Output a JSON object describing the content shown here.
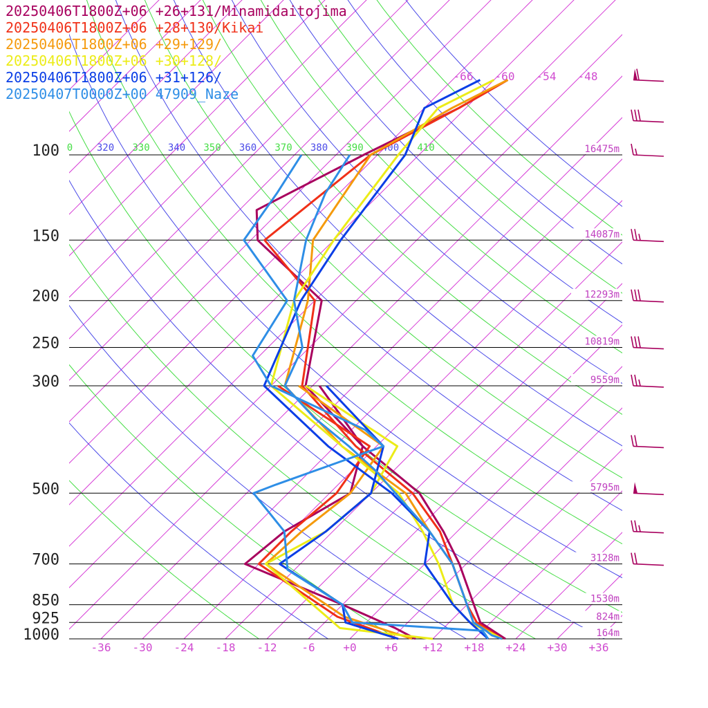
{
  "legend": [
    {
      "label": "20250406T1800Z+06 +26+131/Minamidaitojima",
      "color": "#a8005e"
    },
    {
      "label": "20250406T1800Z+06 +28+130/Kikai",
      "color": "#f03018"
    },
    {
      "label": "20250406T1800Z+06 +29+129/",
      "color": "#f59a0c"
    },
    {
      "label": "20250406T1800Z+06 +30+128/",
      "color": "#ecec18"
    },
    {
      "label": "20250406T1800Z+06 +31+126/",
      "color": "#0a3ee6"
    },
    {
      "label": "20250407T0000Z+00 47909_Naze",
      "color": "#2e8ee6"
    }
  ],
  "chart_data": {
    "type": "line",
    "subtype": "skew-T log-p sounding",
    "y_axis": {
      "kind": "pressure (log)",
      "ticks": [
        {
          "p": 100,
          "label": "100",
          "height": "16475m"
        },
        {
          "p": 150,
          "label": "150",
          "height": "14087m"
        },
        {
          "p": 200,
          "label": "200",
          "height": "12293m"
        },
        {
          "p": 250,
          "label": "250",
          "height": "10819m"
        },
        {
          "p": 300,
          "label": "300",
          "height": "9559m"
        },
        {
          "p": 500,
          "label": "500",
          "height": "5795m"
        },
        {
          "p": 700,
          "label": "700",
          "height": "3128m"
        },
        {
          "p": 850,
          "label": "850",
          "height": "1530m"
        },
        {
          "p": 925,
          "label": "925",
          "height": "824m"
        },
        {
          "p": 1000,
          "label": "1000",
          "height": "164m"
        }
      ]
    },
    "x_axis": {
      "kind": "temperature (°C, skewed)",
      "ticks": [
        "-36",
        "-30",
        "-24",
        "-18",
        "-12",
        "-6",
        "+0",
        "+6",
        "+12",
        "+18",
        "+24",
        "+30",
        "+36"
      ]
    },
    "isotherm_labels": [
      "-66",
      "-60",
      "-54",
      "-48"
    ],
    "theta_labels": [
      {
        "text": "0",
        "color": "#44dd44"
      },
      {
        "text": "320",
        "color": "#4a4ae8"
      },
      {
        "text": "330",
        "color": "#44dd44"
      },
      {
        "text": "340",
        "color": "#4a4ae8"
      },
      {
        "text": "350",
        "color": "#44dd44"
      },
      {
        "text": "360",
        "color": "#4a4ae8"
      },
      {
        "text": "370",
        "color": "#44dd44"
      },
      {
        "text": "380",
        "color": "#4a4ae8"
      },
      {
        "text": "390",
        "color": "#44dd44"
      },
      {
        "text": "400",
        "color": "#4a4ae8"
      },
      {
        "text": "410",
        "color": "#44dd44"
      }
    ],
    "series": [
      {
        "name": "20250406T1800Z+06 +26+131/Minamidaitojima",
        "color": "#a8005e",
        "temperature": [
          [
            1000,
            22.5
          ],
          [
            925,
            16.5
          ],
          [
            850,
            13
          ],
          [
            700,
            5
          ],
          [
            600,
            -2
          ],
          [
            500,
            -11
          ],
          [
            400,
            -26
          ],
          [
            300,
            -43
          ],
          [
            200,
            -53
          ],
          [
            150,
            -71
          ],
          [
            130,
            -75.5
          ],
          [
            100,
            -68
          ],
          [
            80,
            -61
          ],
          [
            70,
            -58
          ]
        ],
        "dewpoint": [
          [
            1000,
            9.5
          ],
          [
            950,
            5
          ],
          [
            850,
            -6
          ],
          [
            700,
            -26
          ],
          [
            600,
            -25
          ],
          [
            500,
            -21
          ],
          [
            400,
            -26
          ],
          [
            300,
            -41
          ]
        ]
      },
      {
        "name": "20250406T1800Z+06 +28+130/Kikai",
        "color": "#f03018",
        "temperature": [
          [
            1000,
            22
          ],
          [
            925,
            16
          ],
          [
            850,
            12
          ],
          [
            700,
            4
          ],
          [
            600,
            -2.5
          ],
          [
            500,
            -12
          ],
          [
            400,
            -27
          ],
          [
            300,
            -43.5
          ],
          [
            200,
            -54
          ],
          [
            150,
            -70
          ],
          [
            100,
            -67
          ],
          [
            80,
            -61
          ],
          [
            70,
            -58
          ]
        ],
        "dewpoint": [
          [
            1000,
            7
          ],
          [
            900,
            -5
          ],
          [
            700,
            -24
          ],
          [
            600,
            -24
          ],
          [
            500,
            -23
          ],
          [
            400,
            -25
          ],
          [
            300,
            -47
          ]
        ]
      },
      {
        "name": "20250406T1800Z+06 +29+129/",
        "color": "#f59a0c",
        "temperature": [
          [
            1000,
            22
          ],
          [
            925,
            15.5
          ],
          [
            850,
            12
          ],
          [
            700,
            4
          ],
          [
            600,
            -4
          ],
          [
            500,
            -13
          ],
          [
            400,
            -29
          ],
          [
            300,
            -46
          ],
          [
            200,
            -55
          ],
          [
            150,
            -63
          ],
          [
            100,
            -67
          ],
          [
            80,
            -62
          ],
          [
            70,
            -58
          ]
        ],
        "dewpoint": [
          [
            1000,
            9
          ],
          [
            900,
            -4
          ],
          [
            700,
            -23
          ],
          [
            600,
            -22.5
          ],
          [
            500,
            -21
          ],
          [
            400,
            -23
          ],
          [
            300,
            -44
          ]
        ]
      },
      {
        "name": "20250406T1800Z+06 +30+128/",
        "color": "#ecec18",
        "temperature": [
          [
            1000,
            22
          ],
          [
            925,
            15
          ],
          [
            850,
            10
          ],
          [
            700,
            2
          ],
          [
            600,
            -5
          ],
          [
            500,
            -14
          ],
          [
            400,
            -29
          ],
          [
            300,
            -48
          ],
          [
            200,
            -57
          ],
          [
            150,
            -60
          ],
          [
            100,
            -63
          ],
          [
            80,
            -64
          ],
          [
            70,
            -60
          ]
        ],
        "dewpoint": [
          [
            1000,
            12
          ],
          [
            950,
            -3
          ],
          [
            700,
            -23
          ],
          [
            600,
            -19
          ],
          [
            500,
            -18
          ],
          [
            400,
            -21
          ],
          [
            300,
            -43
          ]
        ]
      },
      {
        "name": "20250406T1800Z+06 +31+126/",
        "color": "#0a3ee6",
        "temperature": [
          [
            1000,
            20
          ],
          [
            925,
            15
          ],
          [
            850,
            10
          ],
          [
            700,
            0
          ],
          [
            600,
            -4
          ],
          [
            500,
            -15
          ],
          [
            400,
            -31
          ],
          [
            300,
            -49
          ],
          [
            200,
            -56
          ],
          [
            150,
            -59
          ],
          [
            100,
            -62
          ],
          [
            80,
            -66
          ],
          [
            70,
            -62
          ]
        ],
        "dewpoint": [
          [
            1000,
            7
          ],
          [
            925,
            -3
          ],
          [
            850,
            -6
          ],
          [
            700,
            -21
          ],
          [
            600,
            -19
          ],
          [
            500,
            -18
          ],
          [
            400,
            -23
          ],
          [
            300,
            -40
          ]
        ]
      },
      {
        "name": "20250407T0000Z+00 47909_Naze",
        "color": "#2e8ee6",
        "temperature": [
          [
            1000,
            22
          ],
          [
            983,
            20
          ],
          [
            962,
            18.5
          ],
          [
            925,
            15.5
          ],
          [
            850,
            12
          ],
          [
            700,
            4
          ],
          [
            600,
            -4
          ],
          [
            500,
            -14.5
          ],
          [
            450,
            -20.5
          ],
          [
            400,
            -28
          ],
          [
            350,
            -37
          ],
          [
            300,
            -46
          ],
          [
            250,
            -49
          ],
          [
            200,
            -57
          ],
          [
            150,
            -64
          ],
          [
            120,
            -68
          ],
          [
            100,
            -70
          ]
        ],
        "dewpoint": [
          [
            1000,
            20
          ],
          [
            980,
            19
          ],
          [
            962,
            18
          ],
          [
            925,
            -2
          ],
          [
            850,
            -6
          ],
          [
            720,
            -19
          ],
          [
            600,
            -25
          ],
          [
            500,
            -35
          ],
          [
            480,
            -33
          ],
          [
            400,
            -23
          ],
          [
            370,
            -28
          ],
          [
            300,
            -48
          ],
          [
            260,
            -55
          ],
          [
            200,
            -58
          ],
          [
            150,
            -73
          ],
          [
            120,
            -75
          ],
          [
            100,
            -77
          ]
        ]
      }
    ],
    "wind_barbs": [
      {
        "p": 70,
        "knots": 60
      },
      {
        "p": 85,
        "knots": 30
      },
      {
        "p": 100,
        "knots": 15
      },
      {
        "p": 150,
        "knots": 25
      },
      {
        "p": 200,
        "knots": 30
      },
      {
        "p": 250,
        "knots": 30
      },
      {
        "p": 300,
        "knots": 25
      },
      {
        "p": 400,
        "knots": 20
      },
      {
        "p": 500,
        "knots": 50
      },
      {
        "p": 600,
        "knots": 25
      },
      {
        "p": 700,
        "knots": 20
      }
    ]
  }
}
